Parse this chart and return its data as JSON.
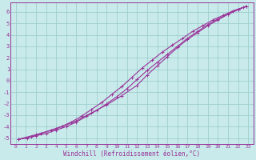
{
  "title": "",
  "xlabel": "Windchill (Refroidissement éolien,°C)",
  "ylabel": "",
  "xlim": [
    -0.5,
    23.5
  ],
  "ylim": [
    -5.5,
    6.8
  ],
  "xticks": [
    0,
    1,
    2,
    3,
    4,
    5,
    6,
    7,
    8,
    9,
    10,
    11,
    12,
    13,
    14,
    15,
    16,
    17,
    18,
    19,
    20,
    21,
    22,
    23
  ],
  "yticks": [
    -5,
    -4,
    -3,
    -2,
    -1,
    0,
    1,
    2,
    3,
    4,
    5,
    6
  ],
  "background_color": "#c8eaea",
  "grid_color": "#9ecece",
  "line_color": "#993399",
  "series1": [
    [
      0.3,
      -5.1
    ],
    [
      1.1,
      -5.0
    ],
    [
      2.0,
      -4.8
    ],
    [
      3.0,
      -4.6
    ],
    [
      4.0,
      -4.3
    ],
    [
      5.0,
      -4.0
    ],
    [
      6.0,
      -3.6
    ],
    [
      7.0,
      -3.1
    ],
    [
      8.0,
      -2.6
    ],
    [
      9.0,
      -2.0
    ],
    [
      10.0,
      -1.4
    ],
    [
      11.0,
      -0.7
    ],
    [
      12.0,
      0.1
    ],
    [
      13.0,
      0.9
    ],
    [
      14.0,
      1.6
    ],
    [
      15.0,
      2.3
    ],
    [
      16.0,
      3.0
    ],
    [
      17.0,
      3.7
    ],
    [
      18.0,
      4.3
    ],
    [
      19.0,
      4.9
    ],
    [
      20.0,
      5.4
    ],
    [
      21.0,
      5.8
    ],
    [
      22.0,
      6.2
    ],
    [
      22.8,
      6.5
    ]
  ],
  "series2": [
    [
      0.3,
      -5.1
    ],
    [
      1.5,
      -4.9
    ],
    [
      2.5,
      -4.6
    ],
    [
      3.5,
      -4.3
    ],
    [
      4.5,
      -4.0
    ],
    [
      5.5,
      -3.6
    ],
    [
      6.5,
      -3.1
    ],
    [
      7.5,
      -2.5
    ],
    [
      8.5,
      -1.9
    ],
    [
      9.5,
      -1.2
    ],
    [
      10.5,
      -0.5
    ],
    [
      11.5,
      0.3
    ],
    [
      12.5,
      1.1
    ],
    [
      13.5,
      1.8
    ],
    [
      14.5,
      2.5
    ],
    [
      15.5,
      3.1
    ],
    [
      16.5,
      3.7
    ],
    [
      17.5,
      4.3
    ],
    [
      18.5,
      4.8
    ],
    [
      19.5,
      5.3
    ],
    [
      20.5,
      5.7
    ],
    [
      21.5,
      6.1
    ],
    [
      22.5,
      6.4
    ]
  ],
  "series3": [
    [
      0.3,
      -5.1
    ],
    [
      2.0,
      -4.7
    ],
    [
      4.0,
      -4.2
    ],
    [
      6.0,
      -3.5
    ],
    [
      7.5,
      -2.8
    ],
    [
      9.0,
      -2.1
    ],
    [
      10.5,
      -1.3
    ],
    [
      12.0,
      -0.4
    ],
    [
      13.0,
      0.5
    ],
    [
      14.0,
      1.3
    ],
    [
      15.0,
      2.1
    ],
    [
      16.0,
      2.9
    ],
    [
      17.0,
      3.6
    ],
    [
      18.0,
      4.2
    ],
    [
      19.0,
      4.8
    ],
    [
      20.0,
      5.3
    ],
    [
      21.0,
      5.8
    ],
    [
      22.0,
      6.2
    ],
    [
      22.8,
      6.5
    ]
  ]
}
